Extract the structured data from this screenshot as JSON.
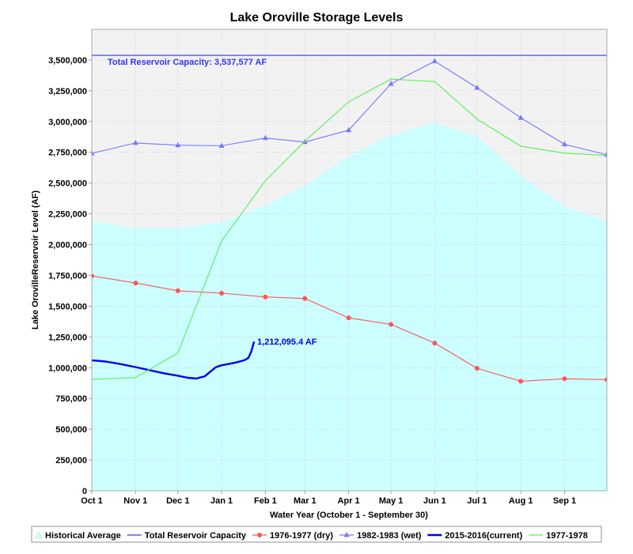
{
  "chart_data": {
    "type": "line",
    "title": "Lake Oroville Storage Levels",
    "xlabel": "Water Year (October 1 - September 30)",
    "ylabel": "Lake OrovilleReservoir Level (AF)",
    "ylim": [
      0,
      3750000
    ],
    "yticks": [
      0,
      250000,
      500000,
      750000,
      1000000,
      1250000,
      1500000,
      1750000,
      2000000,
      2250000,
      2500000,
      2750000,
      3000000,
      3250000,
      3500000
    ],
    "ytick_labels": [
      "0",
      "250,000",
      "500,000",
      "750,000",
      "1,000,000",
      "1,250,000",
      "1,500,000",
      "1,750,000",
      "2,000,000",
      "2,250,000",
      "2,500,000",
      "2,750,000",
      "3,000,000",
      "3,250,000",
      "3,500,000"
    ],
    "x_unit": "day of water year (Oct 1 = 0)",
    "xlim": [
      0,
      365
    ],
    "xticks": [
      0,
      31,
      61,
      92,
      123,
      151,
      182,
      212,
      243,
      273,
      304,
      335
    ],
    "xtick_labels": [
      "Oct 1",
      "Nov 1",
      "Dec 1",
      "Jan 1",
      "Feb 1",
      "Mar 1",
      "Apr 1",
      "May 1",
      "Jun 1",
      "Jul 1",
      "Aug 1",
      "Sep 1"
    ],
    "grid": true,
    "legend_position": "bottom",
    "capacity": {
      "name": "Total Reservoir Capacity",
      "value": 3537577,
      "label": "Total Reservoir Capacity: 3,537,577 AF",
      "color": "#3333ff"
    },
    "series": [
      {
        "name": "Historical Average",
        "kind": "area",
        "color": "#ccffff",
        "x": [
          0,
          31,
          61,
          92,
          123,
          151,
          182,
          212,
          243,
          273,
          304,
          335,
          365
        ],
        "y": [
          2190000,
          2130000,
          2140000,
          2180000,
          2320000,
          2480000,
          2720000,
          2890000,
          2990000,
          2880000,
          2560000,
          2310000,
          2190000
        ]
      },
      {
        "name": "1976-1977 (dry)",
        "kind": "line",
        "marker": "circle",
        "color": "#ff5555",
        "x": [
          0,
          31,
          61,
          92,
          123,
          151,
          182,
          212,
          243,
          273,
          304,
          335,
          365
        ],
        "y": [
          1745000,
          1688000,
          1625000,
          1605000,
          1575000,
          1562000,
          1405000,
          1352000,
          1200000,
          995000,
          890000,
          910000,
          903000
        ]
      },
      {
        "name": "1982-1983 (wet)",
        "kind": "line",
        "marker": "triangle",
        "color": "#7777ff",
        "x": [
          0,
          31,
          61,
          92,
          123,
          151,
          182,
          212,
          243,
          273,
          304,
          335,
          365
        ],
        "y": [
          2742000,
          2826000,
          2808000,
          2803000,
          2866000,
          2833000,
          2930000,
          3306000,
          3490000,
          3275000,
          3030000,
          2815000,
          2730000
        ]
      },
      {
        "name": "2015-2016(current)",
        "kind": "line",
        "marker": "none",
        "color": "#0000ee",
        "x": [
          0,
          10,
          20,
          31,
          41,
          51,
          61,
          68,
          74,
          80,
          84,
          88,
          92,
          97,
          103,
          108,
          111,
          113,
          115
        ],
        "y": [
          1060000,
          1050000,
          1030000,
          1005000,
          980000,
          955000,
          935000,
          918000,
          912000,
          930000,
          968000,
          1005000,
          1020000,
          1030000,
          1045000,
          1060000,
          1080000,
          1130000,
          1212095.4
        ]
      },
      {
        "name": "1977-1978",
        "kind": "line",
        "marker": "none",
        "color": "#55ee55",
        "x": [
          0,
          31,
          61,
          92,
          123,
          151,
          182,
          212,
          243,
          273,
          304,
          335,
          365
        ],
        "y": [
          905000,
          920000,
          1120000,
          2030000,
          2520000,
          2840000,
          3160000,
          3345000,
          3325000,
          3020000,
          2800000,
          2743000,
          2725000
        ]
      }
    ],
    "annotations": [
      {
        "text": "1,212,095.4 AF",
        "x": 115,
        "y": 1212095.4,
        "color": "#0000ee"
      }
    ]
  }
}
